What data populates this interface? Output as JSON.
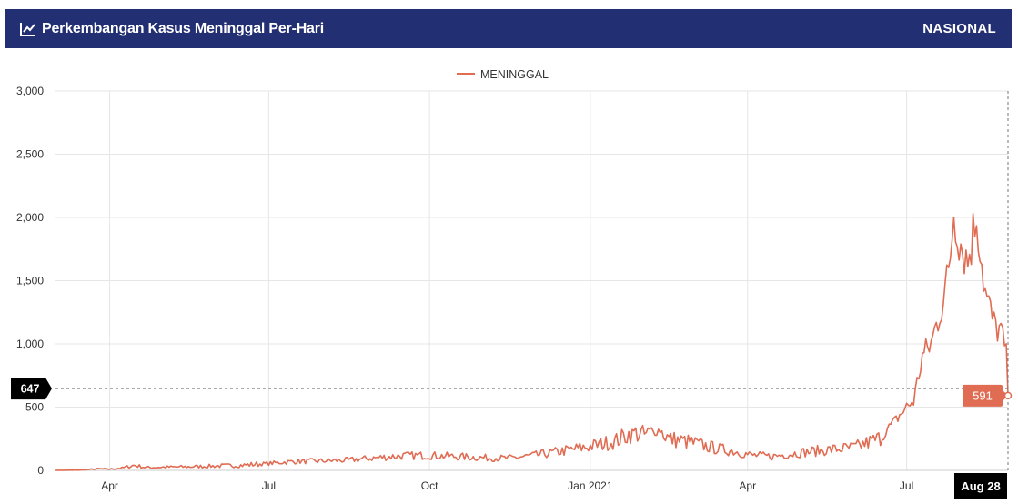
{
  "header": {
    "title": "Perkembangan Kasus Meninggal Per-Hari",
    "region": "NASIONAL"
  },
  "colors": {
    "header_bg": "#232f73",
    "series": "#e06c53",
    "crosshair_label_bg": "#000000"
  },
  "crosshair": {
    "y_label": "647",
    "x_label": "Aug 28"
  },
  "tooltip": {
    "value": "591"
  },
  "chart_data": {
    "type": "line",
    "legend": "top-center",
    "grid": true,
    "ylim": [
      0,
      3000
    ],
    "yticks": [
      "0",
      "500",
      "1,000",
      "1,500",
      "2,000",
      "2,500",
      "3,000"
    ],
    "xticks": [
      "Apr",
      "Jul",
      "Oct",
      "Jan 2021",
      "Apr",
      "Jul",
      "Aug 28"
    ],
    "series": [
      {
        "name": "MENINGGAL",
        "points": [
          [
            "2020-03-01",
            0
          ],
          [
            "2020-03-15",
            2
          ],
          [
            "2020-03-25",
            12
          ],
          [
            "2020-04-01",
            10
          ],
          [
            "2020-04-08",
            18
          ],
          [
            "2020-04-15",
            40
          ],
          [
            "2020-04-22",
            22
          ],
          [
            "2020-05-01",
            25
          ],
          [
            "2020-05-15",
            28
          ],
          [
            "2020-06-01",
            35
          ],
          [
            "2020-06-15",
            40
          ],
          [
            "2020-07-01",
            55
          ],
          [
            "2020-07-15",
            70
          ],
          [
            "2020-08-01",
            75
          ],
          [
            "2020-08-15",
            80
          ],
          [
            "2020-09-01",
            100
          ],
          [
            "2020-09-15",
            115
          ],
          [
            "2020-10-01",
            118
          ],
          [
            "2020-10-15",
            110
          ],
          [
            "2020-11-01",
            100
          ],
          [
            "2020-11-15",
            95
          ],
          [
            "2020-12-01",
            120
          ],
          [
            "2020-12-15",
            150
          ],
          [
            "2021-01-01",
            190
          ],
          [
            "2021-01-15",
            230
          ],
          [
            "2021-01-25",
            300
          ],
          [
            "2021-02-01",
            280
          ],
          [
            "2021-02-10",
            320
          ],
          [
            "2021-02-15",
            250
          ],
          [
            "2021-02-28",
            220
          ],
          [
            "2021-03-15",
            170
          ],
          [
            "2021-03-25",
            150
          ],
          [
            "2021-04-03",
            120
          ],
          [
            "2021-04-15",
            110
          ],
          [
            "2021-05-01",
            140
          ],
          [
            "2021-05-15",
            160
          ],
          [
            "2021-06-01",
            180
          ],
          [
            "2021-06-15",
            250
          ],
          [
            "2021-06-25",
            400
          ],
          [
            "2021-07-01",
            500
          ],
          [
            "2021-07-05",
            550
          ],
          [
            "2021-07-10",
            900
          ],
          [
            "2021-07-15",
            1000
          ],
          [
            "2021-07-20",
            1250
          ],
          [
            "2021-07-25",
            1550
          ],
          [
            "2021-07-28",
            2050
          ],
          [
            "2021-08-01",
            1800
          ],
          [
            "2021-08-05",
            1650
          ],
          [
            "2021-08-10",
            2030
          ],
          [
            "2021-08-15",
            1400
          ],
          [
            "2021-08-20",
            1150
          ],
          [
            "2021-08-24",
            1100
          ],
          [
            "2021-08-27",
            900
          ],
          [
            "2021-08-28",
            591
          ]
        ]
      }
    ]
  }
}
